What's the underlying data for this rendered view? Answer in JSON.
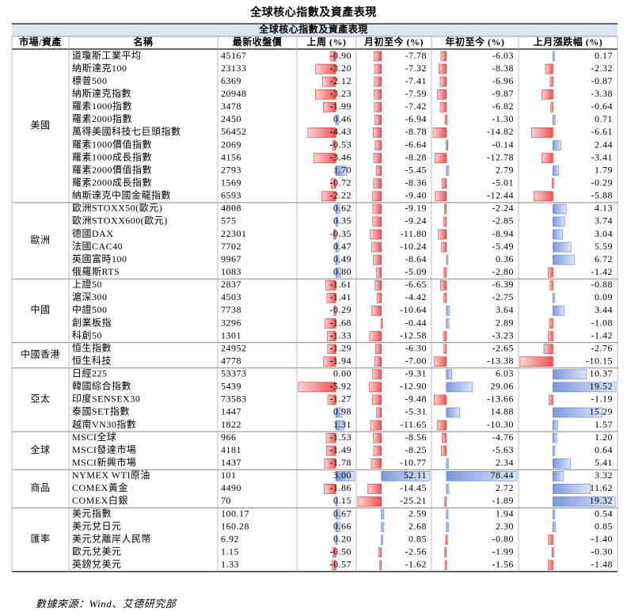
{
  "title": "全球核心指數及資產表現",
  "table": {
    "banner": "全球核心指數及資產表現",
    "columns": [
      "市場/資產",
      "名稱",
      "最新收盤價",
      "上周 (%)",
      "月初至今 (%)",
      "年初至今 (%)",
      "上月漲跌幅 (%)"
    ],
    "groups": [
      {
        "name": "美國",
        "rows": [
          [
            "道瓊斯工業平均",
            "45167",
            "-0.90",
            "-7.78",
            "-6.03",
            "0.17"
          ],
          [
            "納斯達克100",
            "23133",
            "-3.20",
            "-7.32",
            "-8.38",
            "-2.32"
          ],
          [
            "標普500",
            "6369",
            "-2.12",
            "-7.41",
            "-6.96",
            "-0.87"
          ],
          [
            "納斯達克指數",
            "20948",
            "-3.23",
            "-7.59",
            "-9.87",
            "-3.38"
          ],
          [
            "羅素1000指數",
            "3478",
            "-1.99",
            "-7.42",
            "-6.82",
            "-0.64"
          ],
          [
            "羅素2000指數",
            "2450",
            "0.46",
            "-6.94",
            "-1.30",
            "0.71"
          ],
          [
            "萬得美國科技七巨頭指數",
            "56452",
            "-4.43",
            "-8.78",
            "-14.82",
            "-6.61"
          ],
          [
            "羅素1000價值指數",
            "2069",
            "-0.53",
            "-6.64",
            "-0.14",
            "2.44"
          ],
          [
            "羅素1000成長指數",
            "4156",
            "-3.46",
            "-8.28",
            "-12.78",
            "-3.41"
          ],
          [
            "羅素2000價值指數",
            "2793",
            "1.70",
            "-5.45",
            "2.79",
            "1.79"
          ],
          [
            "羅素2000成長指數",
            "1569",
            "-0.72",
            "-8.36",
            "-5.01",
            "-0.29"
          ],
          [
            "納斯達克中國金龍指數",
            "6593",
            "-2.22",
            "-9.40",
            "-12.44",
            "-5.88"
          ]
        ]
      },
      {
        "name": "歐洲",
        "rows": [
          [
            "歐洲STOXX50(歐元)",
            "4808",
            "0.62",
            "-9.19",
            "-2.24",
            "4.13"
          ],
          [
            "歐洲STOXX600(歐元)",
            "575",
            "0.35",
            "-9.24",
            "-2.85",
            "3.74"
          ],
          [
            "德國DAX",
            "22301",
            "-0.35",
            "-11.80",
            "-8.94",
            "3.04"
          ],
          [
            "法國CAC40",
            "7702",
            "0.47",
            "-10.24",
            "-5.49",
            "5.59"
          ],
          [
            "英國富時100",
            "9967",
            "0.49",
            "-8.64",
            "0.36",
            "6.72"
          ],
          [
            "俄羅斯RTS",
            "1083",
            "0.80",
            "-5.09",
            "-2.80",
            "-1.42"
          ]
        ]
      },
      {
        "name": "中國",
        "rows": [
          [
            "上證50",
            "2837",
            "-1.61",
            "-6.65",
            "-6.39",
            "-0.88"
          ],
          [
            "滬深300",
            "4503",
            "-1.41",
            "-4.42",
            "-2.75",
            "0.09"
          ],
          [
            "中證500",
            "7738",
            "-0.29",
            "-10.64",
            "3.64",
            "3.44"
          ],
          [
            "創業板指",
            "3296",
            "-1.68",
            "-0.44",
            "2.89",
            "-1.08"
          ],
          [
            "科創50",
            "1301",
            "-1.33",
            "-12.58",
            "-3.23",
            "-1.42"
          ]
        ]
      },
      {
        "name": "中國香港",
        "rows": [
          [
            "恒生指數",
            "24952",
            "-1.29",
            "-6.30",
            "-2.65",
            "-2.76"
          ],
          [
            "恒生科技",
            "4778",
            "-1.94",
            "-7.00",
            "-13.38",
            "-10.15"
          ]
        ]
      },
      {
        "name": "亞太",
        "rows": [
          [
            "日經225",
            "53373",
            "0.00",
            "-9.31",
            "6.03",
            "10.37"
          ],
          [
            "韓國綜合指數",
            "5439",
            "-5.92",
            "-12.90",
            "29.06",
            "19.52"
          ],
          [
            "印度SENSEX30",
            "73583",
            "-1.27",
            "-9.48",
            "-13.66",
            "-1.19"
          ],
          [
            "泰國SET指數",
            "1447",
            "0.98",
            "-5.31",
            "14.88",
            "15.29"
          ],
          [
            "越南VN30指數",
            "1822",
            "1.31",
            "-11.65",
            "-10.30",
            "1.57"
          ]
        ]
      },
      {
        "name": "全球",
        "rows": [
          [
            "MSCI全球",
            "966",
            "-1.53",
            "-8.56",
            "-4.76",
            "1.20"
          ],
          [
            "MSCI發達市場",
            "4181",
            "-1.49",
            "-8.25",
            "-5.63",
            "0.64"
          ],
          [
            "MSCI新興市場",
            "1437",
            "-1.78",
            "-10.77",
            "2.34",
            "5.41"
          ]
        ]
      },
      {
        "name": "商品",
        "rows": [
          [
            "NYMEX WTI原油",
            "101",
            "3.00",
            "52.11",
            "78.44",
            "3.32"
          ],
          [
            "COMEX黃金",
            "4490",
            "-1.86",
            "-14.45",
            "2.72",
            "11.62"
          ],
          [
            "COMEX白銀",
            "70",
            "0.15",
            "-25.21",
            "-1.89",
            "19.32"
          ]
        ]
      },
      {
        "name": "匯率",
        "rows": [
          [
            "美元指數",
            "100.17",
            "0.67",
            "2.59",
            "1.94",
            "0.54"
          ],
          [
            "美元兌日元",
            "160.28",
            "0.66",
            "2.68",
            "2.30",
            "0.85"
          ],
          [
            "美元兌離岸人民幣",
            "6.92",
            "0.20",
            "0.85",
            "-0.80",
            "-1.40"
          ],
          [
            "歐元兌美元",
            "1.15",
            "-0.50",
            "-2.56",
            "-1.99",
            "-0.30"
          ],
          [
            "英鎊兌美元",
            "1.33",
            "-0.57",
            "-1.62",
            "-1.56",
            "-1.48"
          ]
        ]
      }
    ]
  },
  "source": "數據來源：Wind、艾德研究部"
}
